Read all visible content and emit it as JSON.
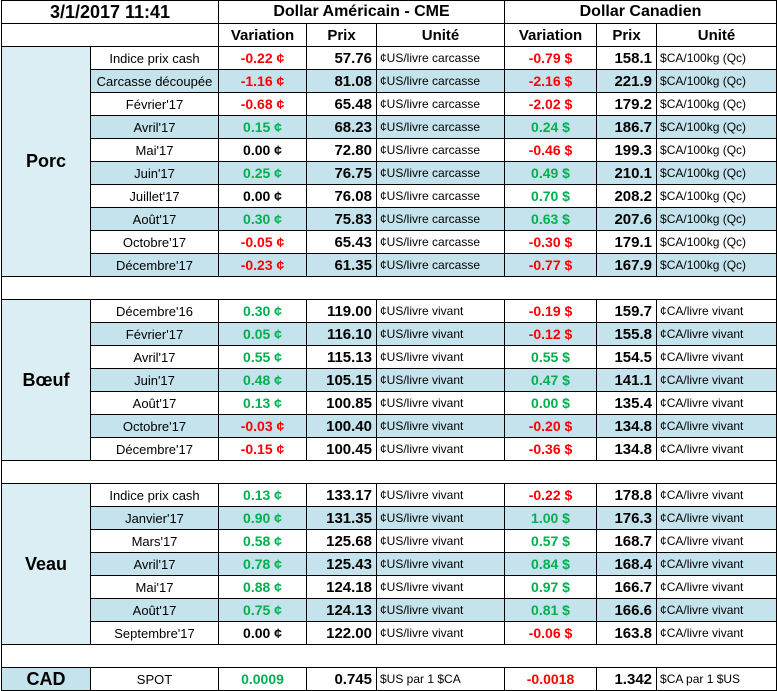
{
  "header": {
    "timestamp": "3/1/2017 11:41",
    "usd_title": "Dollar Américain - CME",
    "cad_title": "Dollar Canadien",
    "col_variation": "Variation",
    "col_prix": "Prix",
    "col_unite": "Unité"
  },
  "groups": [
    {
      "name": "Porc",
      "rows": [
        {
          "label": "Indice prix cash",
          "usd_var": "-0.22 ¢",
          "usd_sign": "neg",
          "usd_price": "57.76",
          "usd_unit": "¢US/livre carcasse",
          "cad_var": "-0.79 $",
          "cad_sign": "neg",
          "cad_price": "158.1",
          "cad_unit": "$CA/100kg (Qc)"
        },
        {
          "label": "Carcasse découpée",
          "usd_var": "-1.16 ¢",
          "usd_sign": "neg",
          "usd_price": "81.08",
          "usd_unit": "¢US/livre carcasse",
          "cad_var": "-2.16 $",
          "cad_sign": "neg",
          "cad_price": "221.9",
          "cad_unit": "$CA/100kg (Qc)"
        },
        {
          "label": "Février'17",
          "usd_var": "-0.68 ¢",
          "usd_sign": "neg",
          "usd_price": "65.48",
          "usd_unit": "¢US/livre carcasse",
          "cad_var": "-2.02 $",
          "cad_sign": "neg",
          "cad_price": "179.2",
          "cad_unit": "$CA/100kg (Qc)"
        },
        {
          "label": "Avril'17",
          "usd_var": "0.15 ¢",
          "usd_sign": "pos",
          "usd_price": "68.23",
          "usd_unit": "¢US/livre carcasse",
          "cad_var": "0.24 $",
          "cad_sign": "pos",
          "cad_price": "186.7",
          "cad_unit": "$CA/100kg (Qc)"
        },
        {
          "label": "Mai'17",
          "usd_var": "0.00 ¢",
          "usd_sign": "zero",
          "usd_price": "72.80",
          "usd_unit": "¢US/livre carcasse",
          "cad_var": "-0.46 $",
          "cad_sign": "neg",
          "cad_price": "199.3",
          "cad_unit": "$CA/100kg (Qc)"
        },
        {
          "label": "Juin'17",
          "usd_var": "0.25 ¢",
          "usd_sign": "pos",
          "usd_price": "76.75",
          "usd_unit": "¢US/livre carcasse",
          "cad_var": "0.49 $",
          "cad_sign": "pos",
          "cad_price": "210.1",
          "cad_unit": "$CA/100kg (Qc)"
        },
        {
          "label": "Juillet'17",
          "usd_var": "0.00 ¢",
          "usd_sign": "zero",
          "usd_price": "76.08",
          "usd_unit": "¢US/livre carcasse",
          "cad_var": "0.70 $",
          "cad_sign": "pos",
          "cad_price": "208.2",
          "cad_unit": "$CA/100kg (Qc)"
        },
        {
          "label": "Août'17",
          "usd_var": "0.30 ¢",
          "usd_sign": "pos",
          "usd_price": "75.83",
          "usd_unit": "¢US/livre carcasse",
          "cad_var": "0.63 $",
          "cad_sign": "pos",
          "cad_price": "207.6",
          "cad_unit": "$CA/100kg (Qc)"
        },
        {
          "label": "Octobre'17",
          "usd_var": "-0.05 ¢",
          "usd_sign": "neg",
          "usd_price": "65.43",
          "usd_unit": "¢US/livre carcasse",
          "cad_var": "-0.30 $",
          "cad_sign": "neg",
          "cad_price": "179.1",
          "cad_unit": "$CA/100kg (Qc)"
        },
        {
          "label": "Décembre'17",
          "usd_var": "-0.23 ¢",
          "usd_sign": "neg",
          "usd_price": "61.35",
          "usd_unit": "¢US/livre carcasse",
          "cad_var": "-0.77 $",
          "cad_sign": "neg",
          "cad_price": "167.9",
          "cad_unit": "$CA/100kg (Qc)"
        }
      ]
    },
    {
      "name": "Bœuf",
      "rows": [
        {
          "label": "Décembre'16",
          "usd_var": "0.30 ¢",
          "usd_sign": "pos",
          "usd_price": "119.00",
          "usd_unit": "¢US/livre vivant",
          "cad_var": "-0.19 $",
          "cad_sign": "neg",
          "cad_price": "159.7",
          "cad_unit": "¢CA/livre vivant"
        },
        {
          "label": "Février'17",
          "usd_var": "0.05 ¢",
          "usd_sign": "pos",
          "usd_price": "116.10",
          "usd_unit": "¢US/livre vivant",
          "cad_var": "-0.12 $",
          "cad_sign": "neg",
          "cad_price": "155.8",
          "cad_unit": "¢CA/livre vivant"
        },
        {
          "label": "Avril'17",
          "usd_var": "0.55 ¢",
          "usd_sign": "pos",
          "usd_price": "115.13",
          "usd_unit": "¢US/livre vivant",
          "cad_var": "0.55 $",
          "cad_sign": "pos",
          "cad_price": "154.5",
          "cad_unit": "¢CA/livre vivant"
        },
        {
          "label": "Juin'17",
          "usd_var": "0.48 ¢",
          "usd_sign": "pos",
          "usd_price": "105.15",
          "usd_unit": "¢US/livre vivant",
          "cad_var": "0.47 $",
          "cad_sign": "pos",
          "cad_price": "141.1",
          "cad_unit": "¢CA/livre vivant"
        },
        {
          "label": "Août'17",
          "usd_var": "0.13 ¢",
          "usd_sign": "pos",
          "usd_price": "100.85",
          "usd_unit": "¢US/livre vivant",
          "cad_var": "0.00 $",
          "cad_sign": "pos",
          "cad_price": "135.4",
          "cad_unit": "¢CA/livre vivant"
        },
        {
          "label": "Octobre'17",
          "usd_var": "-0.03 ¢",
          "usd_sign": "neg",
          "usd_price": "100.40",
          "usd_unit": "¢US/livre vivant",
          "cad_var": "-0.20 $",
          "cad_sign": "neg",
          "cad_price": "134.8",
          "cad_unit": "¢CA/livre vivant"
        },
        {
          "label": "Décembre'17",
          "usd_var": "-0.15 ¢",
          "usd_sign": "neg",
          "usd_price": "100.45",
          "usd_unit": "¢US/livre vivant",
          "cad_var": "-0.36 $",
          "cad_sign": "neg",
          "cad_price": "134.8",
          "cad_unit": "¢CA/livre vivant"
        }
      ]
    },
    {
      "name": "Veau",
      "rows": [
        {
          "label": "Indice prix cash",
          "usd_var": "0.13 ¢",
          "usd_sign": "pos",
          "usd_price": "133.17",
          "usd_unit": "¢US/livre vivant",
          "cad_var": "-0.22 $",
          "cad_sign": "neg",
          "cad_price": "178.8",
          "cad_unit": "¢CA/livre vivant"
        },
        {
          "label": "Janvier'17",
          "usd_var": "0.90 ¢",
          "usd_sign": "pos",
          "usd_price": "131.35",
          "usd_unit": "¢US/livre vivant",
          "cad_var": "1.00 $",
          "cad_sign": "pos",
          "cad_price": "176.3",
          "cad_unit": "¢CA/livre vivant"
        },
        {
          "label": "Mars'17",
          "usd_var": "0.58 ¢",
          "usd_sign": "pos",
          "usd_price": "125.68",
          "usd_unit": "¢US/livre vivant",
          "cad_var": "0.57 $",
          "cad_sign": "pos",
          "cad_price": "168.7",
          "cad_unit": "¢CA/livre vivant"
        },
        {
          "label": "Avril'17",
          "usd_var": "0.78 ¢",
          "usd_sign": "pos",
          "usd_price": "125.43",
          "usd_unit": "¢US/livre vivant",
          "cad_var": "0.84 $",
          "cad_sign": "pos",
          "cad_price": "168.4",
          "cad_unit": "¢CA/livre vivant"
        },
        {
          "label": "Mai'17",
          "usd_var": "0.88 ¢",
          "usd_sign": "pos",
          "usd_price": "124.18",
          "usd_unit": "¢US/livre vivant",
          "cad_var": "0.97 $",
          "cad_sign": "pos",
          "cad_price": "166.7",
          "cad_unit": "¢CA/livre vivant"
        },
        {
          "label": "Août'17",
          "usd_var": "0.75 ¢",
          "usd_sign": "pos",
          "usd_price": "124.13",
          "usd_unit": "¢US/livre vivant",
          "cad_var": "0.81 $",
          "cad_sign": "pos",
          "cad_price": "166.6",
          "cad_unit": "¢CA/livre vivant"
        },
        {
          "label": "Septembre'17",
          "usd_var": "0.00 ¢",
          "usd_sign": "zero",
          "usd_price": "122.00",
          "usd_unit": "¢US/livre vivant",
          "cad_var": "-0.06 $",
          "cad_sign": "neg",
          "cad_price": "163.8",
          "cad_unit": "¢CA/livre vivant"
        }
      ]
    }
  ],
  "cad_row": {
    "name": "CAD",
    "label": "SPOT",
    "usd_var": "0.0009",
    "usd_sign": "pos",
    "usd_price": "0.745",
    "usd_unit": "$US par 1 $CA",
    "cad_var": "-0.0018",
    "cad_sign": "neg",
    "cad_price": "1.342",
    "cad_unit": "$CA par 1 $US"
  },
  "colors": {
    "negative": "#ff0000",
    "positive": "#00b050",
    "zero": "#000000",
    "band": "#c5e3ec",
    "group_bg": "#dbeef4"
  }
}
